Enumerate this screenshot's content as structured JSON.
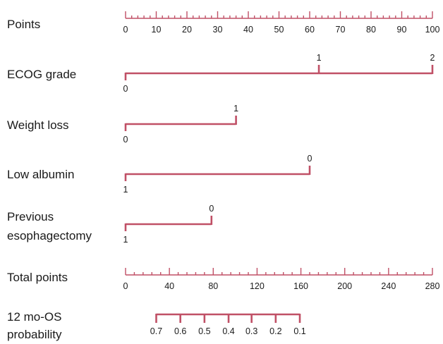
{
  "chart_data": {
    "type": "nomogram",
    "title": "",
    "rows": [
      {
        "key": "points",
        "label": [
          "Points"
        ],
        "kind": "scale",
        "min": 0,
        "max": 100,
        "major_step": 10,
        "minor_step": 2,
        "tick_labels": [
          "0",
          "10",
          "20",
          "30",
          "40",
          "50",
          "60",
          "70",
          "80",
          "90",
          "100"
        ]
      },
      {
        "key": "ecog",
        "label": [
          "ECOG grade"
        ],
        "kind": "variable",
        "levels": [
          {
            "value": "0",
            "points": 0
          },
          {
            "value": "1",
            "points": 63
          },
          {
            "value": "2",
            "points": 100
          }
        ]
      },
      {
        "key": "weight_loss",
        "label": [
          "Weight loss"
        ],
        "kind": "variable",
        "levels": [
          {
            "value": "0",
            "points": 0
          },
          {
            "value": "1",
            "points": 36
          }
        ]
      },
      {
        "key": "low_albumin",
        "label": [
          "Low albumin"
        ],
        "kind": "variable",
        "levels": [
          {
            "value": "1",
            "points": 0
          },
          {
            "value": "0",
            "points": 60
          }
        ]
      },
      {
        "key": "previous_esophagectomy",
        "label": [
          "Previous",
          "esophagectomy"
        ],
        "kind": "variable",
        "levels": [
          {
            "value": "1",
            "points": 0
          },
          {
            "value": "0",
            "points": 28
          }
        ]
      },
      {
        "key": "total_points",
        "label": [
          "Total points"
        ],
        "kind": "scale",
        "min": 0,
        "max": 280,
        "major_step": 40,
        "minor_step": 8,
        "tick_labels": [
          "0",
          "40",
          "80",
          "120",
          "160",
          "200",
          "240",
          "280"
        ]
      },
      {
        "key": "os_12mo",
        "label": [
          "12 mo-OS",
          "probability"
        ],
        "kind": "probability",
        "ticks": [
          {
            "label": "0.7",
            "total_points": 28
          },
          {
            "label": "0.6",
            "total_points": 50
          },
          {
            "label": "0.5",
            "total_points": 72
          },
          {
            "label": "0.4",
            "total_points": 94
          },
          {
            "label": "0.3",
            "total_points": 115
          },
          {
            "label": "0.2",
            "total_points": 137
          },
          {
            "label": "0.1",
            "total_points": 159
          }
        ]
      }
    ]
  }
}
